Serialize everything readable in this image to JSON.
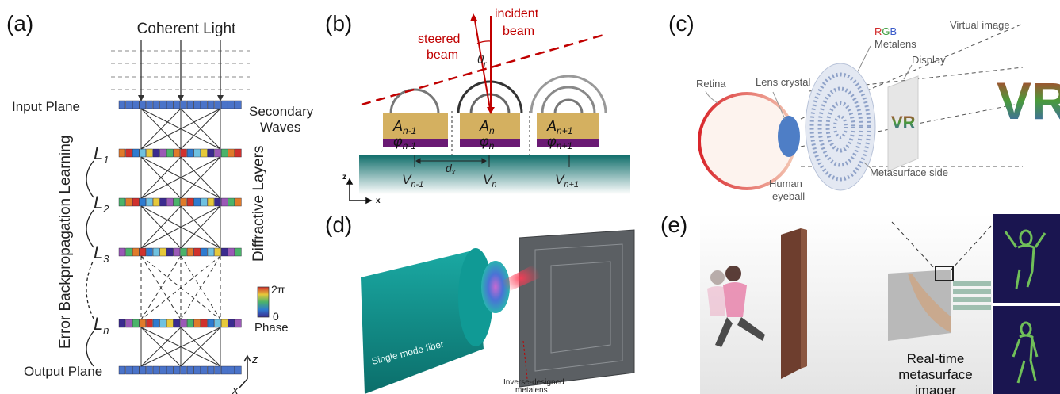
{
  "panels": {
    "a": {
      "label": "(a)",
      "coherent_light": "Coherent Light",
      "input_plane": "Input Plane",
      "secondary_waves": "Secondary\nWaves",
      "layers": [
        "L1",
        "L2",
        "L3",
        "Ln"
      ],
      "diffractive_layers": "Diffractive Layers",
      "error_backprop": "Error Backpropagation Learning",
      "output_plane": "Output Plane",
      "phase_max": "2π",
      "phase_min": "0",
      "phase_label": "Phase",
      "axis_z": "z",
      "axis_x": "x"
    },
    "b": {
      "label": "(b)",
      "incident_beam": "incident\nbeam",
      "steered_beam": "steered\nbeam",
      "theta": "θr",
      "cells": [
        {
          "A": "An-1",
          "phi": "φn-1",
          "V": "Vn-1"
        },
        {
          "A": "An",
          "phi": "φn",
          "V": "Vn"
        },
        {
          "A": "An+1",
          "phi": "φn+1",
          "V": "Vn+1"
        }
      ],
      "dx": "dx",
      "axis_z": "z",
      "axis_x": "x"
    },
    "c": {
      "label": "(c)",
      "rgb_metalens": "RGB\nMetalens",
      "virtual_image": "Virtual image",
      "display": "Display",
      "retina": "Retina",
      "lens_crystal": "Lens crystal",
      "human_eyeball": "Human\neyeball",
      "metasurface_side": "Metasurface side",
      "vr_text": "VR"
    },
    "d": {
      "label": "(d)",
      "fiber": "Single mode fiber",
      "metalens": "Inverse-designed\nmetalens"
    },
    "e": {
      "label": "(e)",
      "imager": "Real-time\nmetasurface\nimager"
    }
  },
  "colors": {
    "red": "#c00000",
    "teal": "#0f8f8a",
    "gold": "#d4b060",
    "purple": "#6a1a74",
    "wall": "#6e3e2e",
    "layer_blue": "#4a73c9"
  }
}
